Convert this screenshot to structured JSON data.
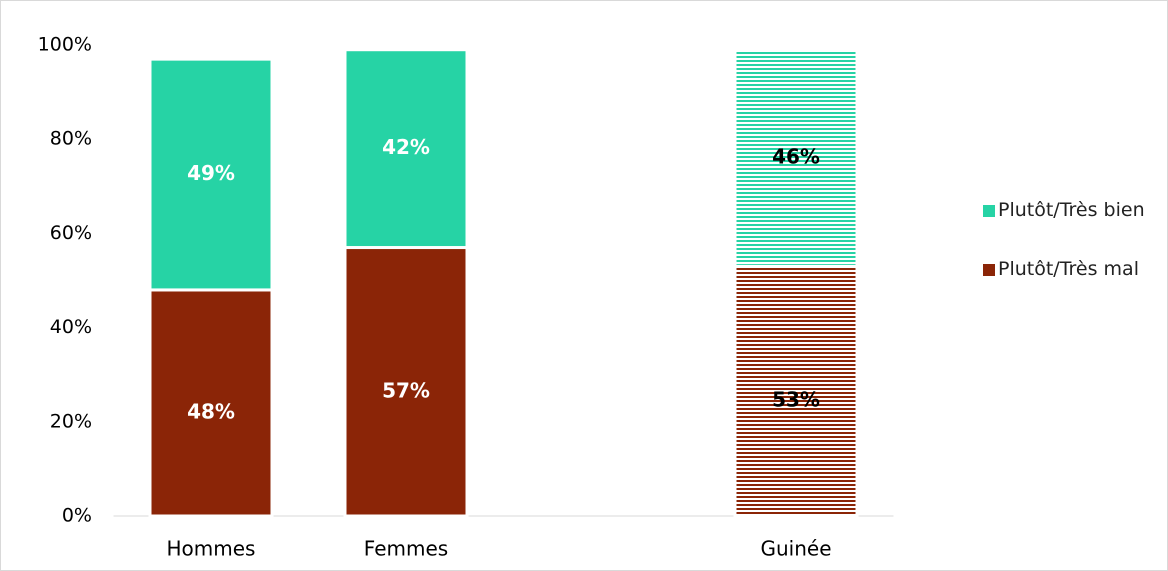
{
  "chart_data": {
    "type": "stacked-bar",
    "categories": [
      "Hommes",
      "Femmes",
      null,
      "Guinée"
    ],
    "hatched": [
      false,
      false,
      false,
      true
    ],
    "series": [
      {
        "name": "Plutôt/Très mal",
        "color": "#8b2507",
        "values": [
          48,
          57,
          null,
          53
        ],
        "value_labels": [
          "48%",
          "57%",
          null,
          "53%"
        ]
      },
      {
        "name": "Plutôt/Très bien",
        "color": "#26d3a5",
        "values": [
          49,
          42,
          null,
          46
        ],
        "value_labels": [
          "49%",
          "42%",
          null,
          "46%"
        ]
      }
    ],
    "ylim": [
      0,
      100
    ],
    "yticks": [
      {
        "value": 0,
        "label": "0%"
      },
      {
        "value": 20,
        "label": "20%"
      },
      {
        "value": 40,
        "label": "40%"
      },
      {
        "value": 60,
        "label": "60%"
      },
      {
        "value": 80,
        "label": "80%"
      },
      {
        "value": 100,
        "label": "100%"
      }
    ],
    "legend": "right"
  }
}
